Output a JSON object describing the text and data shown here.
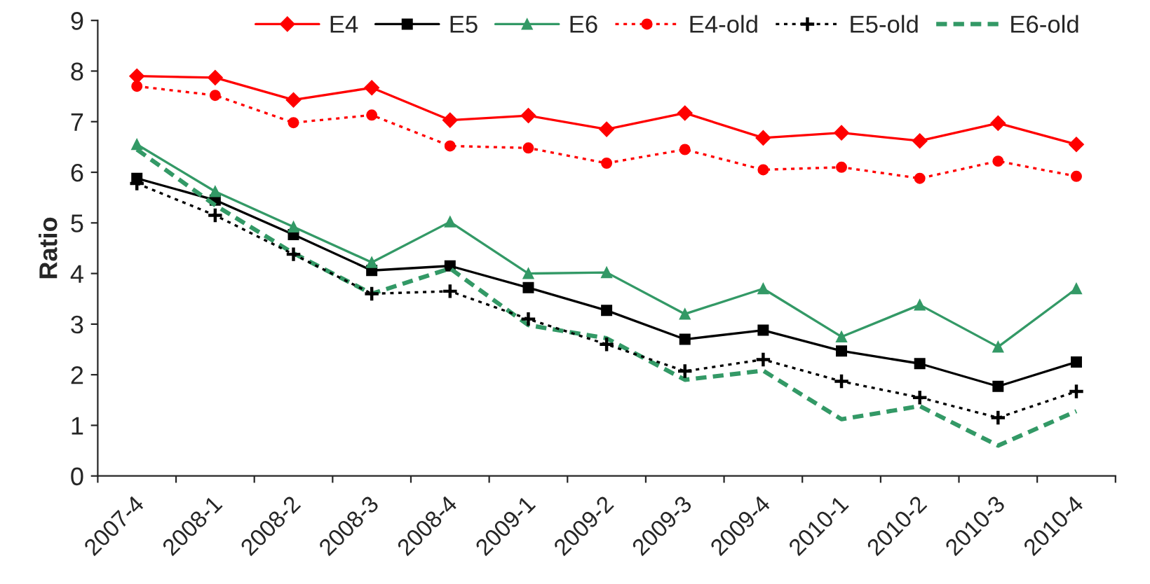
{
  "chart_data": {
    "type": "line",
    "ylabel": "Ratio",
    "categories": [
      "2007-4",
      "2008-1",
      "2008-2",
      "2008-3",
      "2008-4",
      "2009-1",
      "2009-2",
      "2009-3",
      "2009-4",
      "2010-1",
      "2010-2",
      "2010-3",
      "2010-4"
    ],
    "ylim": [
      0,
      9
    ],
    "yticks": [
      0,
      1,
      2,
      3,
      4,
      5,
      6,
      7,
      8,
      9
    ],
    "grid": false,
    "legend": "top",
    "series": [
      {
        "name": "E4",
        "color": "#ff0000",
        "marker": "diamond",
        "line_style": "solid",
        "values": [
          7.9,
          7.87,
          7.43,
          7.67,
          7.03,
          7.12,
          6.85,
          7.17,
          6.68,
          6.78,
          6.62,
          6.97,
          6.55
        ]
      },
      {
        "name": "E5",
        "color": "#000000",
        "marker": "square",
        "line_style": "solid",
        "values": [
          5.88,
          5.45,
          4.77,
          4.06,
          4.15,
          3.72,
          3.27,
          2.7,
          2.88,
          2.47,
          2.22,
          1.77,
          2.25
        ]
      },
      {
        "name": "E6",
        "color": "#339966",
        "marker": "triangle",
        "line_style": "solid",
        "values": [
          6.55,
          5.62,
          4.92,
          4.22,
          5.02,
          4.0,
          4.02,
          3.2,
          3.7,
          2.75,
          3.38,
          2.55,
          3.7
        ]
      },
      {
        "name": "E4-old",
        "color": "#ff0000",
        "marker": "circle",
        "line_style": "dotted",
        "values": [
          7.7,
          7.52,
          6.98,
          7.13,
          6.52,
          6.48,
          6.18,
          6.45,
          6.05,
          6.1,
          5.88,
          6.22,
          5.92
        ]
      },
      {
        "name": "E5-old",
        "color": "#000000",
        "marker": "cross",
        "line_style": "dotted",
        "values": [
          5.78,
          5.15,
          4.38,
          3.6,
          3.65,
          3.1,
          2.6,
          2.07,
          2.3,
          1.87,
          1.55,
          1.15,
          1.67
        ]
      },
      {
        "name": "E6-old",
        "color": "#339966",
        "marker": "none",
        "line_style": "dashed",
        "values": [
          6.45,
          5.35,
          4.4,
          3.6,
          4.1,
          2.98,
          2.72,
          1.9,
          2.08,
          1.12,
          1.38,
          0.6,
          1.28
        ]
      }
    ]
  }
}
